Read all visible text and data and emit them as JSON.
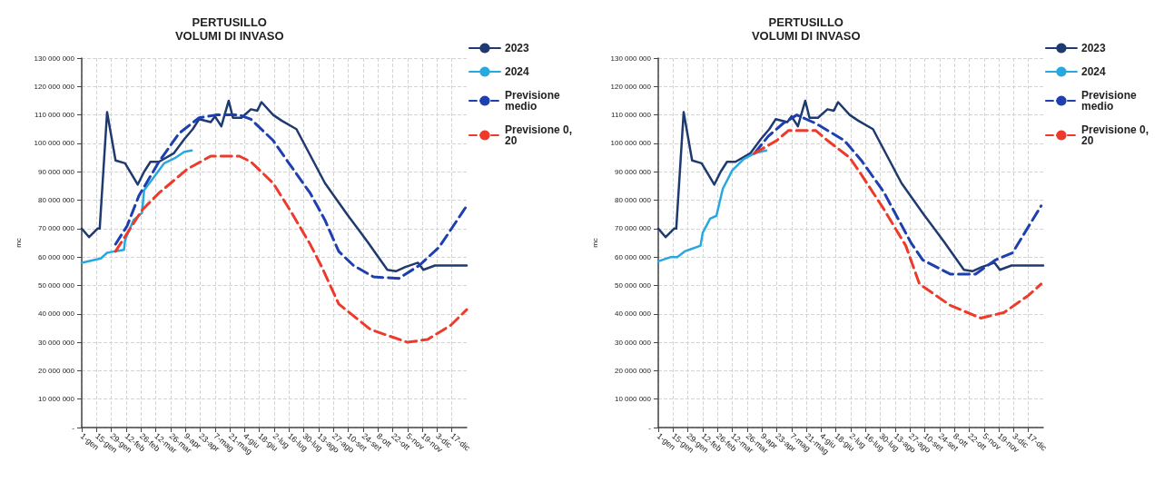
{
  "chart_data": [
    {
      "type": "line",
      "title": "PERTUSILLO\nVOLUMI DI INVASO",
      "ylabel": "mc",
      "grid": true,
      "legend": "top right",
      "marker": "none",
      "xlim": [
        "--01-01",
        "--12-31"
      ],
      "xticks": [
        {
          "value": "--01-01",
          "label": "1-gen"
        },
        {
          "value": "--01-15",
          "label": "15-gen"
        },
        {
          "value": "--01-29",
          "label": "29-gen"
        },
        {
          "value": "--02-12",
          "label": "12-feb"
        },
        {
          "value": "--02-26",
          "label": "26-feb"
        },
        {
          "value": "--03-12",
          "label": "12-mar"
        },
        {
          "value": "--03-26",
          "label": "26-mar"
        },
        {
          "value": "--04-09",
          "label": "9-apr"
        },
        {
          "value": "--04-23",
          "label": "23-apr"
        },
        {
          "value": "--05-07",
          "label": "7-mag"
        },
        {
          "value": "--05-21",
          "label": "21-mag"
        },
        {
          "value": "--06-04",
          "label": "4-giu"
        },
        {
          "value": "--06-18",
          "label": "18-giu"
        },
        {
          "value": "--07-02",
          "label": "2-lug"
        },
        {
          "value": "--07-16",
          "label": "16-lug"
        },
        {
          "value": "--07-30",
          "label": "30-lug"
        },
        {
          "value": "--08-13",
          "label": "13-ago"
        },
        {
          "value": "--08-27",
          "label": "27-ago"
        },
        {
          "value": "--09-10",
          "label": "10-set"
        },
        {
          "value": "--09-24",
          "label": "24-set"
        },
        {
          "value": "--10-08",
          "label": "8-ott"
        },
        {
          "value": "--10-22",
          "label": "22-ott"
        },
        {
          "value": "--11-05",
          "label": "5-nov"
        },
        {
          "value": "--11-19",
          "label": "19-nov"
        },
        {
          "value": "--12-03",
          "label": "3-dic"
        },
        {
          "value": "--12-17",
          "label": "17-dic"
        }
      ],
      "ylim": [
        0,
        130000000
      ],
      "yticks": [
        {
          "value": 0,
          "label": "-"
        },
        {
          "value": 10000000,
          "label": "10 000 000"
        },
        {
          "value": 20000000,
          "label": "20 000 000"
        },
        {
          "value": 30000000,
          "label": "30 000 000"
        },
        {
          "value": 40000000,
          "label": "40 000 000"
        },
        {
          "value": 50000000,
          "label": "50 000 000"
        },
        {
          "value": 60000000,
          "label": "60 000 000"
        },
        {
          "value": 70000000,
          "label": "70 000 000"
        },
        {
          "value": 80000000,
          "label": "80 000 000"
        },
        {
          "value": 90000000,
          "label": "90 000 000"
        },
        {
          "value": 100000000,
          "label": "100 000 000"
        },
        {
          "value": 110000000,
          "label": "110 000 000"
        },
        {
          "value": 120000000,
          "label": "120 000 000"
        },
        {
          "value": 130000000,
          "label": "130 000 000"
        }
      ],
      "series": [
        {
          "name": "2023",
          "color": "#1f3a6e",
          "line_style": "solid",
          "x": [
            "--01-01",
            "--01-08",
            "--01-16",
            "--01-18",
            "--01-25",
            "--02-02",
            "--02-11",
            "--02-23",
            "--03-01",
            "--03-07",
            "--03-15",
            "--03-29",
            "--04-08",
            "--04-16",
            "--04-22",
            "--05-03",
            "--05-07",
            "--05-13",
            "--05-20",
            "--05-24",
            "--06-01",
            "--06-10",
            "--06-16",
            "--06-20",
            "--07-01",
            "--07-09",
            "--07-23",
            "--08-19",
            "--09-09",
            "--09-28",
            "--10-17",
            "--10-25",
            "--11-03",
            "--11-15",
            "--11-20",
            "--12-01",
            "--12-31"
          ],
          "values": [
            70000000,
            67000000,
            70000000,
            70000000,
            111000000,
            94000000,
            93000000,
            85500000,
            90000000,
            93500000,
            93500000,
            96500000,
            101500000,
            105000000,
            108500000,
            107500000,
            109500000,
            106000000,
            115000000,
            109000000,
            109000000,
            112000000,
            111500000,
            114500000,
            110000000,
            108000000,
            105000000,
            86000000,
            75000000,
            65500000,
            55500000,
            55000000,
            56500000,
            58000000,
            55500000,
            57000000,
            57000000
          ]
        },
        {
          "name": "2024",
          "color": "#29a8e0",
          "line_style": "solid",
          "x": [
            "--01-01",
            "--01-19",
            "--01-25",
            "--02-01",
            "--02-10",
            "--02-11",
            "--02-19",
            "--02-27",
            "--03-01",
            "--03-10",
            "--03-20",
            "--03-31",
            "--04-08",
            "--04-15"
          ],
          "values": [
            58000000,
            59500000,
            61500000,
            62000000,
            62500000,
            66000000,
            73000000,
            75500000,
            83500000,
            88000000,
            93000000,
            95000000,
            97000000,
            97500000
          ]
        },
        {
          "name": "Previsione medio",
          "color": "#1d3fb0",
          "line_style": "dashed",
          "x": [
            "--02-02",
            "--02-13",
            "--02-24",
            "--03-15",
            "--04-03",
            "--04-22",
            "--05-08",
            "--05-30",
            "--06-10",
            "--07-01",
            "--07-15",
            "--08-05",
            "--08-19",
            "--09-01",
            "--09-15",
            "--10-04",
            "--10-28",
            "--11-16",
            "--12-05",
            "--12-31"
          ],
          "values": [
            64500000,
            71000000,
            81500000,
            93500000,
            103500000,
            109000000,
            110000000,
            110000000,
            108500000,
            101000000,
            93500000,
            82500000,
            73000000,
            62000000,
            57000000,
            53000000,
            52500000,
            57000000,
            63500000,
            78000000
          ]
        },
        {
          "name": "Previsione 0,20",
          "color": "#ee3a2a",
          "line_style": "dashed",
          "x": [
            "--02-02",
            "--02-27",
            "--03-15",
            "--04-11",
            "--05-03",
            "--05-30",
            "--06-10",
            "--07-01",
            "--07-17",
            "--08-05",
            "--08-16",
            "--09-01",
            "--10-01",
            "--11-05",
            "--11-24",
            "--12-16",
            "--12-31"
          ],
          "values": [
            62000000,
            76500000,
            82500000,
            91000000,
            95500000,
            95500000,
            93500000,
            86000000,
            76500000,
            64500000,
            56500000,
            43500000,
            34500000,
            30000000,
            31000000,
            36000000,
            41500000
          ]
        }
      ]
    },
    {
      "type": "line",
      "title": "PERTUSILLO\nVOLUMI DI INVASO",
      "ylabel": "mc",
      "grid": true,
      "legend": "top right",
      "marker": "none",
      "xlim": [
        "--01-01",
        "--12-31"
      ],
      "xticks": [
        {
          "value": "--01-01",
          "label": "1-gen"
        },
        {
          "value": "--01-15",
          "label": "15-gen"
        },
        {
          "value": "--01-29",
          "label": "29-gen"
        },
        {
          "value": "--02-12",
          "label": "12-feb"
        },
        {
          "value": "--02-26",
          "label": "26-feb"
        },
        {
          "value": "--03-12",
          "label": "12-mar"
        },
        {
          "value": "--03-26",
          "label": "26-mar"
        },
        {
          "value": "--04-09",
          "label": "9-apr"
        },
        {
          "value": "--04-23",
          "label": "23-apr"
        },
        {
          "value": "--05-07",
          "label": "7-mag"
        },
        {
          "value": "--05-21",
          "label": "21-mag"
        },
        {
          "value": "--06-04",
          "label": "4-giu"
        },
        {
          "value": "--06-18",
          "label": "18-giu"
        },
        {
          "value": "--07-02",
          "label": "2-lug"
        },
        {
          "value": "--07-16",
          "label": "16-lug"
        },
        {
          "value": "--07-30",
          "label": "30-lug"
        },
        {
          "value": "--08-13",
          "label": "13-ago"
        },
        {
          "value": "--08-27",
          "label": "27-ago"
        },
        {
          "value": "--09-10",
          "label": "10-set"
        },
        {
          "value": "--09-24",
          "label": "24-set"
        },
        {
          "value": "--10-08",
          "label": "8-ott"
        },
        {
          "value": "--10-22",
          "label": "22-ott"
        },
        {
          "value": "--11-05",
          "label": "5-nov"
        },
        {
          "value": "--11-19",
          "label": "19-nov"
        },
        {
          "value": "--12-03",
          "label": "3-dic"
        },
        {
          "value": "--12-17",
          "label": "17-dic"
        }
      ],
      "ylim": [
        0,
        130000000
      ],
      "yticks": [
        {
          "value": 0,
          "label": "-"
        },
        {
          "value": 10000000,
          "label": "10 000 000"
        },
        {
          "value": 20000000,
          "label": "20 000 000"
        },
        {
          "value": 30000000,
          "label": "30 000 000"
        },
        {
          "value": 40000000,
          "label": "40 000 000"
        },
        {
          "value": 50000000,
          "label": "50 000 000"
        },
        {
          "value": 60000000,
          "label": "60 000 000"
        },
        {
          "value": 70000000,
          "label": "70 000 000"
        },
        {
          "value": 80000000,
          "label": "80 000 000"
        },
        {
          "value": 90000000,
          "label": "90 000 000"
        },
        {
          "value": 100000000,
          "label": "100 000 000"
        },
        {
          "value": 110000000,
          "label": "110 000 000"
        },
        {
          "value": 120000000,
          "label": "120 000 000"
        },
        {
          "value": 130000000,
          "label": "130 000 000"
        }
      ],
      "series": [
        {
          "name": "2023",
          "color": "#1f3a6e",
          "line_style": "solid",
          "x": [
            "--01-01",
            "--01-08",
            "--01-16",
            "--01-18",
            "--01-25",
            "--02-02",
            "--02-11",
            "--02-23",
            "--03-01",
            "--03-07",
            "--03-15",
            "--03-29",
            "--04-08",
            "--04-16",
            "--04-22",
            "--05-03",
            "--05-07",
            "--05-13",
            "--05-20",
            "--05-24",
            "--06-01",
            "--06-10",
            "--06-16",
            "--06-20",
            "--07-01",
            "--07-09",
            "--07-23",
            "--08-19",
            "--09-09",
            "--09-28",
            "--10-17",
            "--10-25",
            "--11-03",
            "--11-15",
            "--11-20",
            "--12-01",
            "--12-31"
          ],
          "values": [
            70000000,
            67000000,
            70000000,
            70000000,
            111000000,
            94000000,
            93000000,
            85500000,
            90000000,
            93500000,
            93500000,
            96500000,
            101500000,
            105000000,
            108500000,
            107500000,
            109500000,
            106000000,
            115000000,
            109000000,
            109000000,
            112000000,
            111500000,
            114500000,
            110000000,
            108000000,
            105000000,
            86000000,
            75000000,
            65500000,
            55500000,
            55000000,
            56500000,
            58000000,
            55500000,
            57000000,
            57000000
          ]
        },
        {
          "name": "2024",
          "color": "#29a8e0",
          "line_style": "solid",
          "x": [
            "--01-01",
            "--01-13",
            "--01-19",
            "--01-26",
            "--02-10",
            "--02-12",
            "--02-19",
            "--02-25",
            "--03-03",
            "--03-12",
            "--03-23",
            "--04-02",
            "--04-13"
          ],
          "values": [
            58500000,
            60000000,
            60000000,
            62000000,
            64000000,
            68500000,
            73500000,
            74500000,
            84000000,
            90500000,
            94500000,
            96500000,
            97500000
          ]
        },
        {
          "name": "Previsione medio",
          "color": "#1d3fb0",
          "line_style": "dashed",
          "x": [
            "--04-02",
            "--04-15",
            "--04-29",
            "--05-12",
            "--05-30",
            "--06-26",
            "--07-12",
            "--08-02",
            "--08-28",
            "--09-08",
            "--10-04",
            "--10-28",
            "--11-16",
            "--12-02",
            "--12-29"
          ],
          "values": [
            96500000,
            102500000,
            107000000,
            110000000,
            107000000,
            101000000,
            94000000,
            83000000,
            65000000,
            59000000,
            54000000,
            54000000,
            59000000,
            61500000,
            78000000
          ]
        },
        {
          "name": "Previsione 0,20",
          "color": "#ee3a2a",
          "line_style": "dashed",
          "x": [
            "--04-02",
            "--04-23",
            "--05-04",
            "--05-30",
            "--06-10",
            "--07-01",
            "--07-12",
            "--08-02",
            "--08-23",
            "--09-05",
            "--10-04",
            "--11-02",
            "--11-24",
            "--12-17",
            "--12-29"
          ],
          "values": [
            96500000,
            101000000,
            104500000,
            104500000,
            101000000,
            95000000,
            89000000,
            77000000,
            64000000,
            50500000,
            43000000,
            38500000,
            40500000,
            46500000,
            50500000
          ]
        }
      ]
    }
  ]
}
